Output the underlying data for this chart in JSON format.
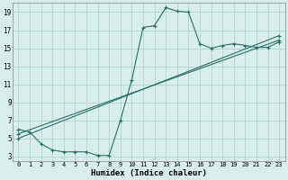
{
  "xlabel": "Humidex (Indice chaleur)",
  "bg_color": "#d8eeeb",
  "grid_color": "#b8d8d4",
  "line_color": "#2a6e65",
  "xlim": [
    -0.5,
    23.5
  ],
  "ylim": [
    2.5,
    20.0
  ],
  "xticks": [
    0,
    1,
    2,
    3,
    4,
    5,
    6,
    7,
    8,
    9,
    10,
    11,
    12,
    13,
    14,
    15,
    16,
    17,
    18,
    19,
    20,
    21,
    22,
    23
  ],
  "yticks": [
    3,
    5,
    7,
    9,
    11,
    13,
    15,
    17,
    19
  ],
  "curve1_x": [
    0,
    1,
    2,
    3,
    4,
    5,
    6,
    7,
    8,
    9,
    10,
    11,
    12,
    13,
    14,
    15,
    16,
    17,
    18,
    19,
    20,
    21,
    22,
    23
  ],
  "curve1_y": [
    6.0,
    5.7,
    4.4,
    3.7,
    3.5,
    3.5,
    3.5,
    3.1,
    3.1,
    7.0,
    11.5,
    17.3,
    17.5,
    19.5,
    19.1,
    19.0,
    15.5,
    15.0,
    15.3,
    15.5,
    15.3,
    15.1,
    15.1,
    15.7
  ],
  "line2_x": [
    0,
    23
  ],
  "line2_y": [
    5.5,
    15.9
  ],
  "line3_x": [
    0,
    23
  ],
  "line3_y": [
    5.0,
    16.4
  ]
}
